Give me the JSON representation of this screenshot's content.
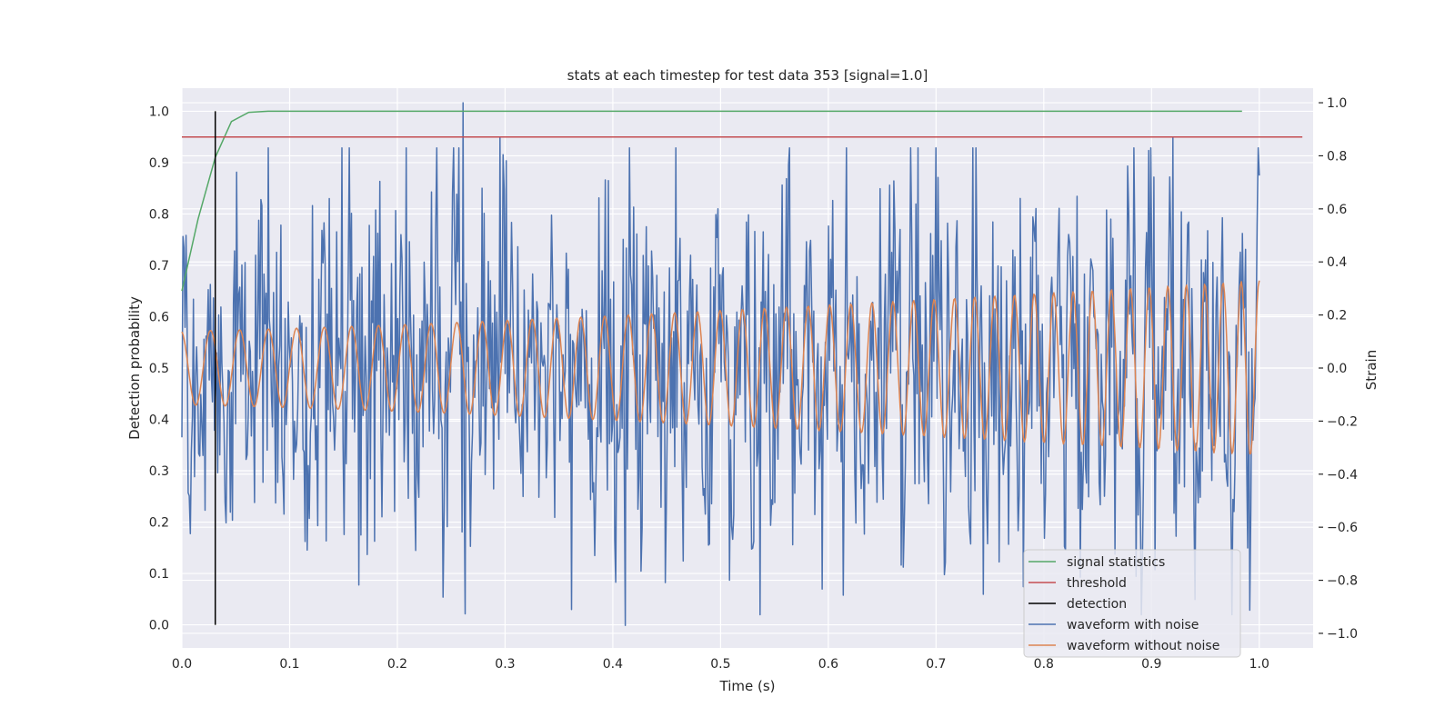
{
  "chart_data": {
    "type": "line",
    "title": "stats at each timestep for test data 353 [signal=1.0]",
    "xlabel": "Time (s)",
    "ylabel": "Detection probability",
    "y2label": "Strain",
    "xlim": [
      0.0,
      1.05
    ],
    "ylim": [
      -0.045,
      1.045
    ],
    "y2lim": [
      -1.055,
      1.055
    ],
    "xticks": [
      "0.0",
      "0.1",
      "0.2",
      "0.3",
      "0.4",
      "0.5",
      "0.6",
      "0.7",
      "0.8",
      "0.9",
      "1.0"
    ],
    "yticks": [
      "0.0",
      "0.1",
      "0.2",
      "0.3",
      "0.4",
      "0.5",
      "0.6",
      "0.7",
      "0.8",
      "0.9",
      "1.0"
    ],
    "y2ticks": [
      "−1.0",
      "−0.8",
      "−0.6",
      "−0.4",
      "−0.2",
      "0.0",
      "0.2",
      "0.4",
      "0.6",
      "0.8",
      "1.0"
    ],
    "grid": true,
    "legend_position": "lower-right",
    "colors": {
      "signal_statistics": "#55a868",
      "threshold": "#c44e52",
      "detection": "#000000",
      "waveform_with_noise": "#4c72b0",
      "waveform_without_noise": "#dd8452"
    },
    "signal_statistics": {
      "name": "signal statistics",
      "x": [
        0.0,
        0.015,
        0.031,
        0.046,
        0.062,
        0.08,
        0.1,
        0.2,
        0.4,
        0.6,
        0.8,
        0.984
      ],
      "y": [
        0.65,
        0.79,
        0.91,
        0.98,
        0.998,
        1.0,
        1.0,
        1.0,
        1.0,
        1.0,
        1.0,
        1.0
      ]
    },
    "threshold": {
      "name": "threshold",
      "value": 0.95,
      "x_range": [
        0.0,
        1.04
      ]
    },
    "detection": {
      "name": "detection",
      "time": 0.031,
      "y_range": [
        0.0,
        1.0
      ]
    },
    "waveform_with_noise": {
      "name": "waveform with noise",
      "x_range": [
        0.0,
        1.0
      ],
      "samples": 1024,
      "strain_range": [
        -0.97,
        1.0
      ],
      "notable_peaks": [
        {
          "x": 0.261,
          "strain": 1.0
        },
        {
          "x": 0.295,
          "strain": 0.87
        },
        {
          "x": 0.412,
          "strain": -0.97
        },
        {
          "x": 0.92,
          "strain": 0.87
        }
      ]
    },
    "waveform_without_noise": {
      "name": "waveform without noise",
      "x_range": [
        0.0,
        1.0
      ],
      "amplitude_start": 0.14,
      "amplitude_end": 0.33,
      "cycles_start_hz": 36,
      "cycles_end_hz": 60
    },
    "legend": [
      "signal statistics",
      "threshold",
      "detection",
      "waveform with noise",
      "waveform without noise"
    ]
  }
}
